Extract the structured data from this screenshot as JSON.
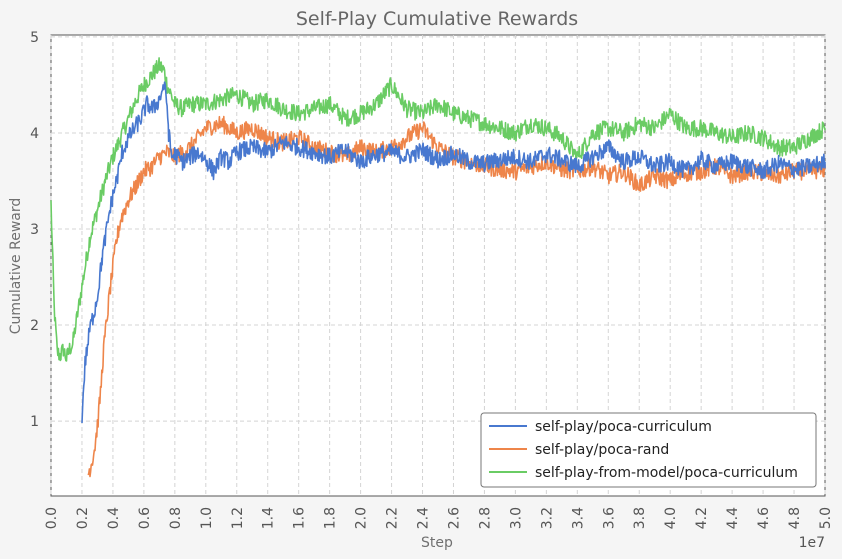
{
  "chart_data": {
    "type": "line",
    "title": "Self-Play Cumulative Rewards",
    "xlabel": "Step",
    "ylabel": "Cumulative Reward",
    "x_scale_label": "1e7",
    "xlim": [
      0.0,
      5.0
    ],
    "ylim": [
      0.22,
      5.02
    ],
    "x_ticks": [
      "0.0",
      "0.2",
      "0.4",
      "0.6",
      "0.8",
      "1.0",
      "1.2",
      "1.4",
      "1.6",
      "1.8",
      "2.0",
      "2.2",
      "2.4",
      "2.6",
      "2.8",
      "3.0",
      "3.2",
      "3.4",
      "3.6",
      "3.8",
      "4.0",
      "4.2",
      "4.4",
      "4.6",
      "4.8",
      "5.0"
    ],
    "y_ticks": [
      "1",
      "2",
      "3",
      "4",
      "5"
    ],
    "grid": true,
    "legend_position": "lower-right",
    "series": [
      {
        "name": "self-play/poca-curriculum",
        "color": "#4878cf",
        "x": [
          0.2,
          0.22,
          0.25,
          0.28,
          0.3,
          0.33,
          0.36,
          0.38,
          0.4,
          0.43,
          0.46,
          0.5,
          0.54,
          0.58,
          0.62,
          0.66,
          0.7,
          0.73,
          0.75,
          0.76,
          0.78,
          0.8,
          0.85,
          0.9,
          0.95,
          1.0,
          1.05,
          1.1,
          1.15,
          1.2,
          1.3,
          1.4,
          1.5,
          1.6,
          1.7,
          1.8,
          1.9,
          2.0,
          2.1,
          2.2,
          2.3,
          2.4,
          2.5,
          2.6,
          2.7,
          2.8,
          2.9,
          3.0,
          3.1,
          3.2,
          3.3,
          3.4,
          3.5,
          3.6,
          3.7,
          3.8,
          3.9,
          4.0,
          4.1,
          4.2,
          4.3,
          4.4,
          4.5,
          4.6,
          4.7,
          4.8,
          4.9,
          5.0
        ],
        "y": [
          1.05,
          1.6,
          1.95,
          2.15,
          2.3,
          2.7,
          3.0,
          3.2,
          3.35,
          3.55,
          3.8,
          3.95,
          4.05,
          4.15,
          4.3,
          4.25,
          4.35,
          4.5,
          4.3,
          4.0,
          3.75,
          3.78,
          3.7,
          3.75,
          3.8,
          3.72,
          3.6,
          3.75,
          3.7,
          3.8,
          3.85,
          3.8,
          3.9,
          3.85,
          3.8,
          3.75,
          3.82,
          3.7,
          3.78,
          3.8,
          3.75,
          3.82,
          3.72,
          3.78,
          3.7,
          3.68,
          3.72,
          3.75,
          3.7,
          3.78,
          3.72,
          3.65,
          3.75,
          3.85,
          3.7,
          3.75,
          3.65,
          3.7,
          3.6,
          3.72,
          3.65,
          3.7,
          3.65,
          3.6,
          3.68,
          3.62,
          3.65,
          3.7
        ]
      },
      {
        "name": "self-play/poca-rand",
        "color": "#ee854a",
        "x": [
          0.24,
          0.26,
          0.28,
          0.3,
          0.32,
          0.34,
          0.36,
          0.38,
          0.4,
          0.42,
          0.45,
          0.5,
          0.55,
          0.6,
          0.65,
          0.7,
          0.75,
          0.8,
          0.9,
          1.0,
          1.1,
          1.2,
          1.3,
          1.4,
          1.5,
          1.6,
          1.7,
          1.8,
          1.9,
          2.0,
          2.1,
          2.2,
          2.3,
          2.4,
          2.5,
          2.6,
          2.7,
          2.8,
          2.9,
          3.0,
          3.1,
          3.2,
          3.3,
          3.4,
          3.5,
          3.6,
          3.7,
          3.8,
          3.9,
          4.0,
          4.1,
          4.2,
          4.3,
          4.4,
          4.5,
          4.6,
          4.7,
          4.8,
          4.9,
          5.0
        ],
        "y": [
          0.45,
          0.55,
          0.7,
          0.95,
          1.3,
          1.75,
          2.05,
          2.35,
          2.6,
          2.85,
          3.1,
          3.3,
          3.45,
          3.6,
          3.65,
          3.75,
          3.8,
          3.75,
          3.85,
          4.05,
          4.1,
          4.0,
          4.05,
          3.95,
          3.9,
          3.95,
          3.85,
          3.8,
          3.75,
          3.85,
          3.8,
          3.85,
          3.95,
          4.05,
          3.85,
          3.75,
          3.7,
          3.65,
          3.62,
          3.6,
          3.65,
          3.7,
          3.62,
          3.6,
          3.65,
          3.55,
          3.6,
          3.45,
          3.55,
          3.5,
          3.58,
          3.6,
          3.65,
          3.55,
          3.6,
          3.58,
          3.55,
          3.6,
          3.6,
          3.62
        ]
      },
      {
        "name": "self-play-from-model/poca-curriculum",
        "color": "#6acc64",
        "x": [
          0.0,
          0.02,
          0.04,
          0.06,
          0.08,
          0.1,
          0.12,
          0.14,
          0.16,
          0.18,
          0.2,
          0.25,
          0.3,
          0.35,
          0.4,
          0.45,
          0.5,
          0.55,
          0.6,
          0.65,
          0.7,
          0.73,
          0.75,
          0.8,
          0.85,
          0.9,
          1.0,
          1.1,
          1.2,
          1.3,
          1.4,
          1.5,
          1.6,
          1.7,
          1.8,
          1.9,
          2.0,
          2.1,
          2.2,
          2.3,
          2.4,
          2.5,
          2.6,
          2.7,
          2.8,
          2.9,
          3.0,
          3.1,
          3.2,
          3.3,
          3.4,
          3.5,
          3.6,
          3.7,
          3.8,
          3.9,
          4.0,
          4.1,
          4.2,
          4.3,
          4.4,
          4.5,
          4.6,
          4.7,
          4.8,
          4.9,
          5.0
        ],
        "y": [
          3.27,
          2.2,
          1.72,
          1.68,
          1.75,
          1.65,
          1.75,
          1.8,
          2.0,
          2.2,
          2.4,
          2.9,
          3.2,
          3.5,
          3.75,
          3.95,
          4.15,
          4.35,
          4.5,
          4.6,
          4.7,
          4.65,
          4.5,
          4.3,
          4.25,
          4.3,
          4.3,
          4.35,
          4.4,
          4.3,
          4.35,
          4.25,
          4.2,
          4.25,
          4.3,
          4.15,
          4.2,
          4.3,
          4.5,
          4.25,
          4.2,
          4.3,
          4.2,
          4.15,
          4.1,
          4.05,
          4.0,
          4.1,
          4.05,
          3.95,
          3.75,
          4.0,
          4.05,
          4.0,
          4.1,
          4.05,
          4.2,
          4.05,
          4.05,
          4.0,
          3.95,
          4.0,
          3.95,
          3.85,
          3.85,
          3.95,
          4.05
        ]
      }
    ]
  }
}
